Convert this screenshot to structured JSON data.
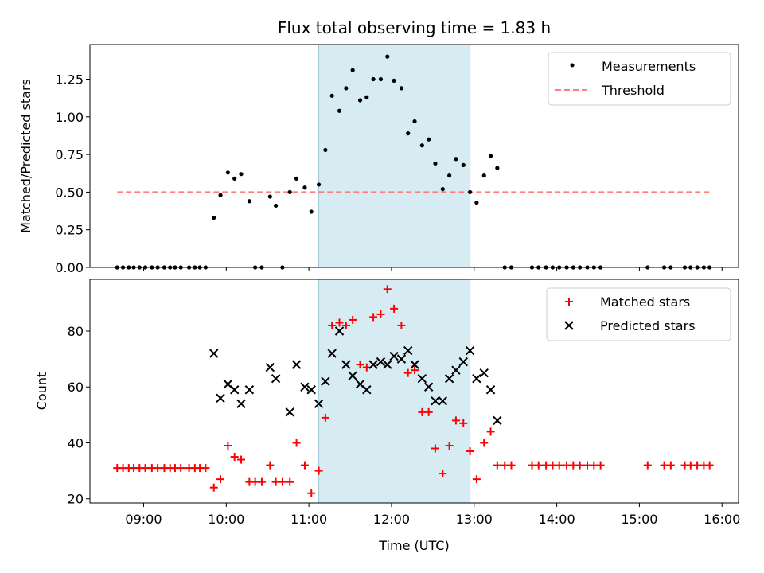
{
  "chart_data": [
    {
      "type": "scatter",
      "title": "Flux total observing time = 1.83 h",
      "xlabel": "",
      "ylabel": "Matched/Predicted stars",
      "xlim": [
        8.35,
        16.2
      ],
      "ylim": [
        0,
        1.48
      ],
      "yticks": [
        0.0,
        0.25,
        0.5,
        0.75,
        1.0,
        1.25
      ],
      "ytick_labels": [
        "0.00",
        "0.25",
        "0.50",
        "0.75",
        "1.00",
        "1.25"
      ],
      "shaded_region": [
        11.12,
        12.95
      ],
      "legend": [
        "Measurements",
        "Threshold"
      ],
      "legend_location": "upper right",
      "threshold": {
        "name": "Threshold",
        "value": 0.5,
        "x_range": [
          8.68,
          15.87
        ],
        "color": "#ff7f7f"
      },
      "series": [
        {
          "name": "Measurements",
          "marker": "dot",
          "color": "#000000",
          "points": [
            [
              8.68,
              0
            ],
            [
              8.75,
              0
            ],
            [
              8.82,
              0
            ],
            [
              8.88,
              0
            ],
            [
              8.95,
              0
            ],
            [
              9.02,
              0
            ],
            [
              9.1,
              0
            ],
            [
              9.17,
              0
            ],
            [
              9.25,
              0
            ],
            [
              9.32,
              0
            ],
            [
              9.38,
              0
            ],
            [
              9.45,
              0
            ],
            [
              9.55,
              0
            ],
            [
              9.62,
              0
            ],
            [
              9.68,
              0
            ],
            [
              9.75,
              0
            ],
            [
              9.85,
              0.33
            ],
            [
              9.93,
              0.48
            ],
            [
              10.02,
              0.63
            ],
            [
              10.1,
              0.59
            ],
            [
              10.18,
              0.62
            ],
            [
              10.28,
              0.44
            ],
            [
              10.35,
              0
            ],
            [
              10.43,
              0
            ],
            [
              10.53,
              0.47
            ],
            [
              10.6,
              0.41
            ],
            [
              10.68,
              0
            ],
            [
              10.77,
              0.5
            ],
            [
              10.85,
              0.59
            ],
            [
              10.95,
              0.53
            ],
            [
              11.03,
              0.37
            ],
            [
              11.12,
              0.55
            ],
            [
              11.2,
              0.78
            ],
            [
              11.28,
              1.14
            ],
            [
              11.37,
              1.04
            ],
            [
              11.45,
              1.19
            ],
            [
              11.53,
              1.31
            ],
            [
              11.62,
              1.11
            ],
            [
              11.7,
              1.13
            ],
            [
              11.78,
              1.25
            ],
            [
              11.87,
              1.25
            ],
            [
              11.95,
              1.4
            ],
            [
              12.03,
              1.24
            ],
            [
              12.12,
              1.19
            ],
            [
              12.2,
              0.89
            ],
            [
              12.28,
              0.97
            ],
            [
              12.37,
              0.81
            ],
            [
              12.45,
              0.85
            ],
            [
              12.53,
              0.69
            ],
            [
              12.62,
              0.52
            ],
            [
              12.7,
              0.61
            ],
            [
              12.78,
              0.72
            ],
            [
              12.87,
              0.68
            ],
            [
              12.95,
              0.5
            ],
            [
              13.03,
              0.43
            ],
            [
              13.12,
              0.61
            ],
            [
              13.2,
              0.74
            ],
            [
              13.28,
              0.66
            ],
            [
              13.37,
              0
            ],
            [
              13.45,
              0
            ],
            [
              13.7,
              0
            ],
            [
              13.78,
              0
            ],
            [
              13.87,
              0
            ],
            [
              13.95,
              0
            ],
            [
              14.03,
              0
            ],
            [
              14.12,
              0
            ],
            [
              14.2,
              0
            ],
            [
              14.28,
              0
            ],
            [
              14.37,
              0
            ],
            [
              14.45,
              0
            ],
            [
              14.53,
              0
            ],
            [
              15.1,
              0
            ],
            [
              15.3,
              0
            ],
            [
              15.38,
              0
            ],
            [
              15.55,
              0
            ],
            [
              15.62,
              0
            ],
            [
              15.7,
              0
            ],
            [
              15.78,
              0
            ],
            [
              15.85,
              0
            ]
          ]
        }
      ]
    },
    {
      "type": "scatter",
      "title": "",
      "xlabel": "Time (UTC)",
      "ylabel": "Count",
      "xlim": [
        8.35,
        16.2
      ],
      "ylim": [
        18.5,
        98.5
      ],
      "xticks": [
        9,
        10,
        11,
        12,
        13,
        14,
        15,
        16
      ],
      "xtick_labels": [
        "09:00",
        "10:00",
        "11:00",
        "12:00",
        "13:00",
        "14:00",
        "15:00",
        "16:00"
      ],
      "yticks": [
        20,
        40,
        60,
        80
      ],
      "ytick_labels": [
        "20",
        "40",
        "60",
        "80"
      ],
      "shaded_region": [
        11.12,
        12.95
      ],
      "legend": [
        "Matched stars",
        "Predicted stars"
      ],
      "legend_location": "upper right",
      "series": [
        {
          "name": "Matched stars",
          "marker": "plus",
          "color": "#ff0000",
          "points": [
            [
              8.68,
              31
            ],
            [
              8.75,
              31
            ],
            [
              8.82,
              31
            ],
            [
              8.88,
              31
            ],
            [
              8.95,
              31
            ],
            [
              9.02,
              31
            ],
            [
              9.1,
              31
            ],
            [
              9.17,
              31
            ],
            [
              9.25,
              31
            ],
            [
              9.32,
              31
            ],
            [
              9.38,
              31
            ],
            [
              9.45,
              31
            ],
            [
              9.55,
              31
            ],
            [
              9.62,
              31
            ],
            [
              9.68,
              31
            ],
            [
              9.75,
              31
            ],
            [
              9.85,
              24
            ],
            [
              9.93,
              27
            ],
            [
              10.02,
              39
            ],
            [
              10.1,
              35
            ],
            [
              10.18,
              34
            ],
            [
              10.28,
              26
            ],
            [
              10.35,
              26
            ],
            [
              10.43,
              26
            ],
            [
              10.53,
              32
            ],
            [
              10.6,
              26
            ],
            [
              10.68,
              26
            ],
            [
              10.77,
              26
            ],
            [
              10.85,
              40
            ],
            [
              10.95,
              32
            ],
            [
              11.03,
              22
            ],
            [
              11.12,
              30
            ],
            [
              11.2,
              49
            ],
            [
              11.28,
              82
            ],
            [
              11.37,
              83
            ],
            [
              11.45,
              82
            ],
            [
              11.53,
              84
            ],
            [
              11.62,
              68
            ],
            [
              11.7,
              67
            ],
            [
              11.78,
              85
            ],
            [
              11.87,
              86
            ],
            [
              11.95,
              95
            ],
            [
              12.03,
              88
            ],
            [
              12.12,
              82
            ],
            [
              12.2,
              65
            ],
            [
              12.28,
              66
            ],
            [
              12.37,
              51
            ],
            [
              12.45,
              51
            ],
            [
              12.53,
              38
            ],
            [
              12.62,
              29
            ],
            [
              12.7,
              39
            ],
            [
              12.78,
              48
            ],
            [
              12.87,
              47
            ],
            [
              12.95,
              37
            ],
            [
              13.03,
              27
            ],
            [
              13.12,
              40
            ],
            [
              13.2,
              44
            ],
            [
              13.28,
              32
            ],
            [
              13.37,
              32
            ],
            [
              13.45,
              32
            ],
            [
              13.7,
              32
            ],
            [
              13.78,
              32
            ],
            [
              13.87,
              32
            ],
            [
              13.95,
              32
            ],
            [
              14.03,
              32
            ],
            [
              14.12,
              32
            ],
            [
              14.2,
              32
            ],
            [
              14.28,
              32
            ],
            [
              14.37,
              32
            ],
            [
              14.45,
              32
            ],
            [
              14.53,
              32
            ],
            [
              15.1,
              32
            ],
            [
              15.3,
              32
            ],
            [
              15.38,
              32
            ],
            [
              15.55,
              32
            ],
            [
              15.62,
              32
            ],
            [
              15.7,
              32
            ],
            [
              15.78,
              32
            ],
            [
              15.85,
              32
            ]
          ]
        },
        {
          "name": "Predicted stars",
          "marker": "x",
          "color": "#000000",
          "points": [
            [
              9.85,
              72
            ],
            [
              9.93,
              56
            ],
            [
              10.02,
              61
            ],
            [
              10.1,
              59
            ],
            [
              10.18,
              54
            ],
            [
              10.28,
              59
            ],
            [
              10.53,
              67
            ],
            [
              10.6,
              63
            ],
            [
              10.77,
              51
            ],
            [
              10.85,
              68
            ],
            [
              10.95,
              60
            ],
            [
              11.03,
              59
            ],
            [
              11.12,
              54
            ],
            [
              11.2,
              62
            ],
            [
              11.28,
              72
            ],
            [
              11.37,
              80
            ],
            [
              11.45,
              68
            ],
            [
              11.53,
              64
            ],
            [
              11.62,
              61
            ],
            [
              11.7,
              59
            ],
            [
              11.78,
              68
            ],
            [
              11.87,
              69
            ],
            [
              11.95,
              68
            ],
            [
              12.03,
              71
            ],
            [
              12.12,
              70
            ],
            [
              12.2,
              73
            ],
            [
              12.28,
              68
            ],
            [
              12.37,
              63
            ],
            [
              12.45,
              60
            ],
            [
              12.53,
              55
            ],
            [
              12.62,
              55
            ],
            [
              12.7,
              63
            ],
            [
              12.78,
              66
            ],
            [
              12.87,
              69
            ],
            [
              12.95,
              73
            ],
            [
              13.03,
              63
            ],
            [
              13.12,
              65
            ],
            [
              13.2,
              59
            ],
            [
              13.28,
              48
            ]
          ]
        }
      ]
    }
  ]
}
